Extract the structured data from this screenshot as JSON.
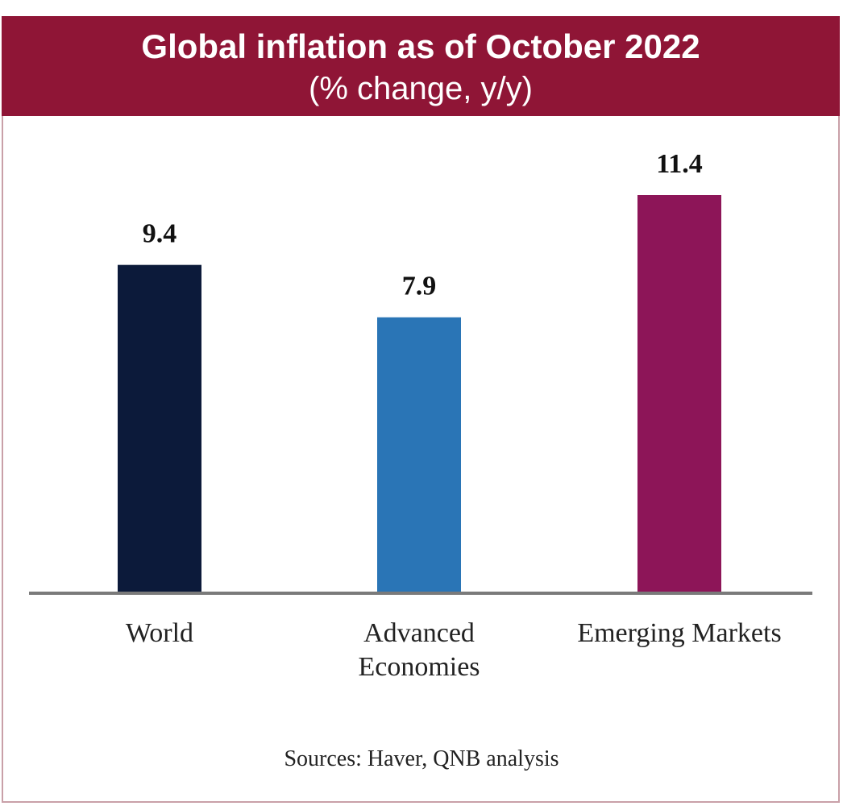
{
  "chart_data": {
    "type": "bar",
    "title": "Global inflation as of October 2022",
    "subtitle": "(% change, y/y)",
    "categories": [
      "World",
      "Advanced Economies",
      "Emerging Markets"
    ],
    "category_lines": [
      [
        "World"
      ],
      [
        "Advanced",
        "Economies"
      ],
      [
        "Emerging Markets"
      ]
    ],
    "values": [
      9.4,
      7.9,
      11.4
    ],
    "value_labels": [
      "9.4",
      "7.9",
      "11.4"
    ],
    "colors": [
      "#0c1a3a",
      "#2a75b6",
      "#8d1558"
    ],
    "ylim": [
      0,
      13.5
    ],
    "xlabel": "",
    "ylabel": "",
    "grid": false,
    "source": "Sources: Haver, QNB analysis"
  }
}
